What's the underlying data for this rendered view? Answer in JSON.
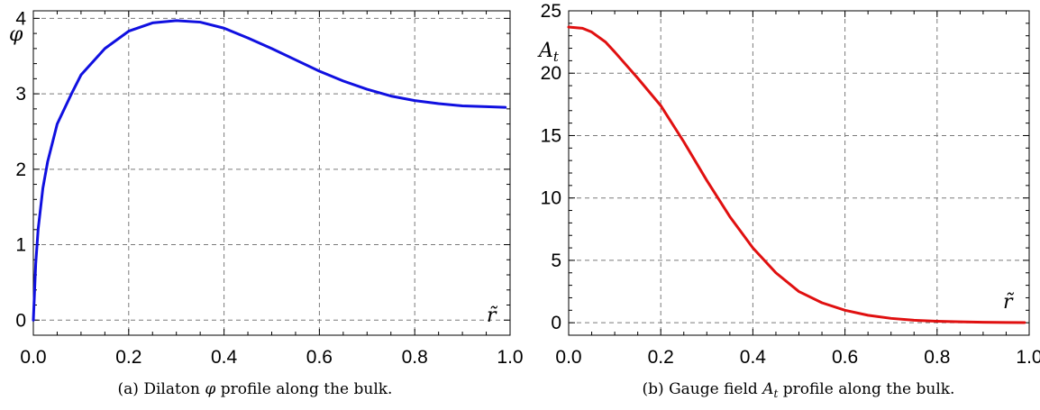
{
  "chart_data": [
    {
      "type": "line",
      "caption": {
        "prefix": "(a) Dilaton ",
        "symbol": "φ",
        "suffix": " profile along the bulk."
      },
      "ylabel": {
        "symbol": "φ",
        "sub": ""
      },
      "xlabel": {
        "symbol": "r̃",
        "sub": ""
      },
      "xlim": [
        0,
        1.0
      ],
      "ylim": [
        -0.2,
        4.1
      ],
      "xticks": [
        "0.0",
        "0.2",
        "0.4",
        "0.6",
        "0.8",
        "1.0"
      ],
      "xtick_values": [
        0,
        0.2,
        0.4,
        0.6,
        0.8,
        1.0
      ],
      "yticks": [
        "0",
        "1",
        "2",
        "3",
        "4"
      ],
      "ytick_values": [
        0,
        1,
        2,
        3,
        4
      ],
      "grid": true,
      "series": [
        {
          "color": "#1010e0",
          "x": [
            0.0,
            0.005,
            0.01,
            0.02,
            0.03,
            0.05,
            0.08,
            0.1,
            0.15,
            0.2,
            0.25,
            0.3,
            0.35,
            0.4,
            0.45,
            0.5,
            0.55,
            0.6,
            0.65,
            0.7,
            0.75,
            0.8,
            0.85,
            0.9,
            0.95,
            0.99
          ],
          "y": [
            0.0,
            0.75,
            1.2,
            1.75,
            2.1,
            2.6,
            3.0,
            3.25,
            3.6,
            3.83,
            3.94,
            3.97,
            3.95,
            3.87,
            3.74,
            3.6,
            3.45,
            3.3,
            3.17,
            3.06,
            2.97,
            2.91,
            2.87,
            2.84,
            2.83,
            2.82
          ]
        }
      ]
    },
    {
      "type": "line",
      "caption": {
        "prefix": "(b) Gauge field ",
        "symbol": "A",
        "sub": "t",
        "suffix": " profile along the bulk."
      },
      "ylabel": {
        "symbol": "A",
        "sub": "t"
      },
      "xlabel": {
        "symbol": "r̃",
        "sub": ""
      },
      "xlim": [
        0,
        1.0
      ],
      "ylim": [
        -1,
        25
      ],
      "xticks": [
        "0.0",
        "0.2",
        "0.4",
        "0.6",
        "0.8",
        "1.0"
      ],
      "xtick_values": [
        0,
        0.2,
        0.4,
        0.6,
        0.8,
        1.0
      ],
      "yticks": [
        "0",
        "5",
        "10",
        "15",
        "20",
        "25"
      ],
      "ytick_values": [
        0,
        5,
        10,
        15,
        20,
        25
      ],
      "grid": true,
      "series": [
        {
          "color": "#e01010",
          "x": [
            0.0,
            0.03,
            0.05,
            0.08,
            0.1,
            0.15,
            0.2,
            0.25,
            0.3,
            0.35,
            0.4,
            0.45,
            0.5,
            0.55,
            0.6,
            0.65,
            0.7,
            0.75,
            0.8,
            0.85,
            0.9,
            0.95,
            0.99
          ],
          "y": [
            23.7,
            23.6,
            23.3,
            22.5,
            21.7,
            19.6,
            17.4,
            14.5,
            11.4,
            8.5,
            6.0,
            4.0,
            2.5,
            1.6,
            1.0,
            0.6,
            0.35,
            0.2,
            0.12,
            0.07,
            0.04,
            0.02,
            0.01
          ]
        }
      ]
    }
  ]
}
